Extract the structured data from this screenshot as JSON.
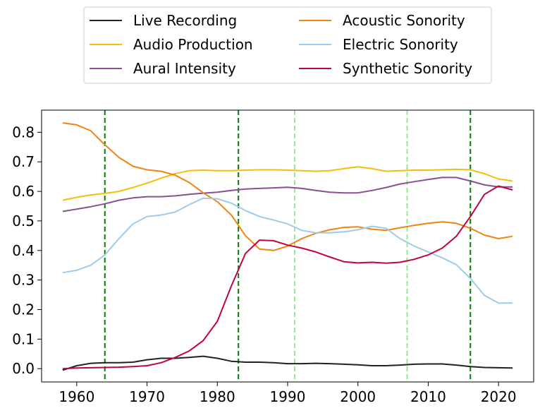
{
  "chart_data": {
    "type": "line",
    "title": "",
    "xlabel": "",
    "ylabel": "",
    "xlim": [
      1955,
      2025
    ],
    "ylim": [
      -0.045,
      0.875
    ],
    "x_ticks": [
      1960,
      1970,
      1980,
      1990,
      2000,
      2010,
      2020
    ],
    "y_ticks": [
      0.0,
      0.1,
      0.2,
      0.3,
      0.4,
      0.5,
      0.6,
      0.7,
      0.8
    ],
    "x_tick_labels": [
      "1960",
      "1970",
      "1980",
      "1990",
      "2000",
      "2010",
      "2020"
    ],
    "y_tick_labels": [
      "0.0",
      "0.1",
      "0.2",
      "0.3",
      "0.4",
      "0.5",
      "0.6",
      "0.7",
      "0.8"
    ],
    "grid": false,
    "legend": {
      "placement": "above",
      "columns": 2
    },
    "vertical_lines": [
      {
        "x": 1964,
        "color": "#008000"
      },
      {
        "x": 1983,
        "color": "#008000"
      },
      {
        "x": 1991,
        "color": "#90ee90"
      },
      {
        "x": 2007,
        "color": "#90ee90"
      },
      {
        "x": 2016,
        "color": "#008000"
      }
    ],
    "x": [
      1958,
      1960,
      1962,
      1964,
      1966,
      1968,
      1970,
      1972,
      1974,
      1976,
      1978,
      1980,
      1982,
      1984,
      1986,
      1988,
      1990,
      1992,
      1994,
      1996,
      1998,
      2000,
      2002,
      2004,
      2006,
      2008,
      2010,
      2012,
      2014,
      2016,
      2018,
      2020,
      2022
    ],
    "series": [
      {
        "name": "Live Recording",
        "color": "#222222",
        "values": [
          -0.005,
          0.01,
          0.018,
          0.02,
          0.02,
          0.022,
          0.03,
          0.035,
          0.035,
          0.038,
          0.042,
          0.035,
          0.025,
          0.022,
          0.022,
          0.02,
          0.017,
          0.017,
          0.018,
          0.017,
          0.015,
          0.013,
          0.01,
          0.01,
          0.012,
          0.015,
          0.016,
          0.016,
          0.012,
          0.007,
          0.004,
          0.003,
          0.002
        ]
      },
      {
        "name": "Audio Production",
        "color": "#f2bf0c",
        "values": [
          0.57,
          0.58,
          0.588,
          0.593,
          0.6,
          0.613,
          0.628,
          0.645,
          0.66,
          0.67,
          0.672,
          0.67,
          0.67,
          0.672,
          0.673,
          0.673,
          0.672,
          0.67,
          0.668,
          0.67,
          0.677,
          0.683,
          0.677,
          0.668,
          0.67,
          0.672,
          0.672,
          0.673,
          0.675,
          0.673,
          0.66,
          0.642,
          0.635
        ]
      },
      {
        "name": "Aural Intensity",
        "color": "#8a4e92",
        "values": [
          0.532,
          0.54,
          0.548,
          0.558,
          0.57,
          0.578,
          0.582,
          0.582,
          0.585,
          0.59,
          0.594,
          0.597,
          0.603,
          0.608,
          0.61,
          0.612,
          0.614,
          0.61,
          0.603,
          0.597,
          0.595,
          0.595,
          0.603,
          0.613,
          0.625,
          0.633,
          0.64,
          0.647,
          0.647,
          0.635,
          0.622,
          0.615,
          0.615
        ]
      },
      {
        "name": "Acoustic Sonority",
        "color": "#ef8412",
        "values": [
          0.832,
          0.825,
          0.805,
          0.758,
          0.715,
          0.685,
          0.673,
          0.668,
          0.655,
          0.63,
          0.595,
          0.565,
          0.52,
          0.45,
          0.405,
          0.4,
          0.415,
          0.44,
          0.458,
          0.47,
          0.478,
          0.48,
          0.472,
          0.468,
          0.477,
          0.485,
          0.492,
          0.497,
          0.492,
          0.475,
          0.452,
          0.44,
          0.448
        ]
      },
      {
        "name": "Electric Sonority",
        "color": "#9ecbec",
        "values": [
          0.325,
          0.333,
          0.35,
          0.385,
          0.44,
          0.49,
          0.515,
          0.52,
          0.53,
          0.555,
          0.577,
          0.575,
          0.56,
          0.535,
          0.515,
          0.503,
          0.49,
          0.468,
          0.46,
          0.46,
          0.463,
          0.47,
          0.482,
          0.475,
          0.44,
          0.415,
          0.395,
          0.375,
          0.352,
          0.305,
          0.248,
          0.222,
          0.222
        ]
      },
      {
        "name": "Synthetic Sonority",
        "color": "#c0053b",
        "values": [
          0.0,
          0.002,
          0.003,
          0.004,
          0.005,
          0.007,
          0.01,
          0.02,
          0.038,
          0.06,
          0.095,
          0.16,
          0.28,
          0.39,
          0.435,
          0.433,
          0.418,
          0.408,
          0.395,
          0.378,
          0.362,
          0.358,
          0.36,
          0.357,
          0.36,
          0.37,
          0.385,
          0.408,
          0.448,
          0.515,
          0.59,
          0.618,
          0.605
        ]
      }
    ]
  }
}
